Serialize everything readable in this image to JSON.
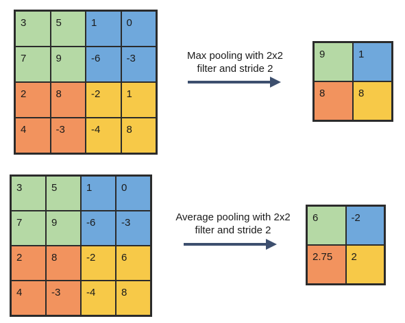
{
  "colors": {
    "green": "#b5d9a5",
    "blue": "#6fa8dc",
    "orange": "#f2935e",
    "yellow": "#f7c948",
    "arrow": "#3d4f6e"
  },
  "max_pool": {
    "input": [
      [
        "3",
        "5",
        "1",
        "0"
      ],
      [
        "7",
        "9",
        "-6",
        "-3"
      ],
      [
        "2",
        "8",
        "-2",
        "1"
      ],
      [
        "4",
        "-3",
        "-4",
        "8"
      ]
    ],
    "caption_line1": "Max pooling with 2x2",
    "caption_line2": "filter and stride 2",
    "output": [
      [
        "9",
        "1"
      ],
      [
        "8",
        "8"
      ]
    ]
  },
  "avg_pool": {
    "input": [
      [
        "3",
        "5",
        "1",
        "0"
      ],
      [
        "7",
        "9",
        "-6",
        "-3"
      ],
      [
        "2",
        "8",
        "-2",
        "6"
      ],
      [
        "4",
        "-3",
        "-4",
        "8"
      ]
    ],
    "caption_line1": "Average pooling with 2x2",
    "caption_line2": "filter and stride 2",
    "output": [
      [
        "6",
        "-2"
      ],
      [
        "2.75",
        "2"
      ]
    ]
  }
}
